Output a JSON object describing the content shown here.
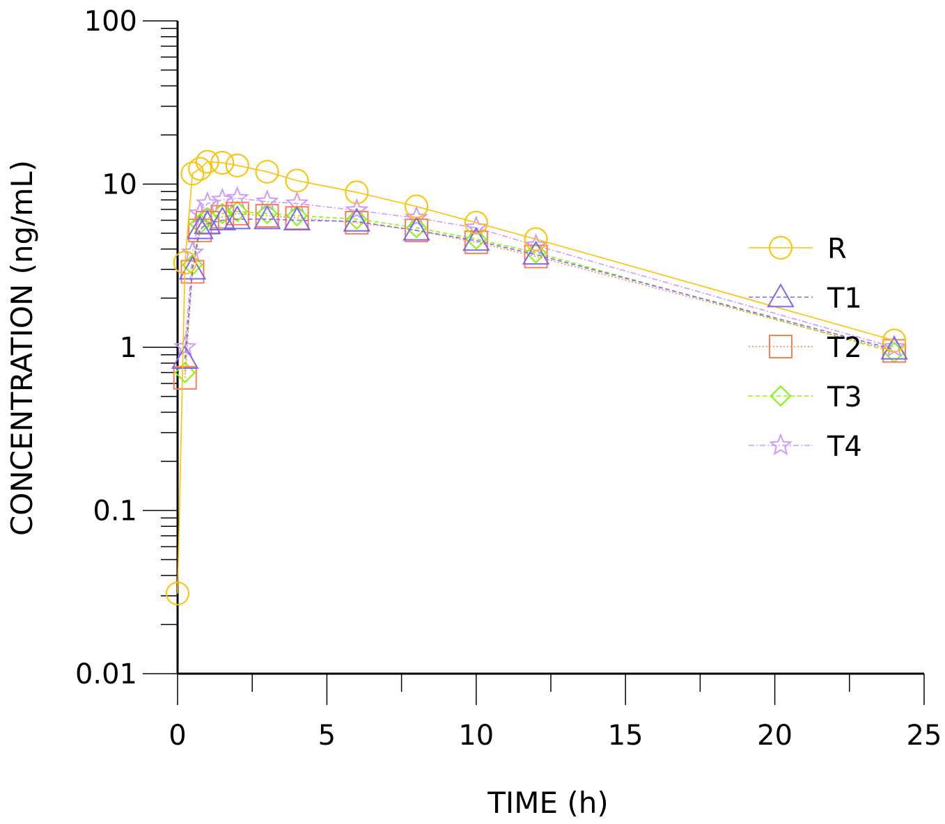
{
  "chart_data": {
    "type": "line",
    "title": "",
    "xlabel": "TIME (h)",
    "ylabel": "CONCENTRATION (ng/mL)",
    "yscale": "log",
    "xlim": [
      0,
      25
    ],
    "ylim": [
      0.01,
      100
    ],
    "xticks": [
      0,
      5,
      10,
      15,
      20,
      25
    ],
    "xtick_labels": [
      "0",
      "5",
      "10",
      "15",
      "20",
      "25"
    ],
    "yticks": [
      0.01,
      0.1,
      1,
      10,
      100
    ],
    "ytick_labels": [
      "0.01",
      "0.1",
      "1",
      "10",
      "100"
    ],
    "legend_position": "right",
    "series": [
      {
        "name": "R",
        "color": "#FFC000",
        "marker": "circle",
        "dash": "solid",
        "x": [
          0,
          0.25,
          0.5,
          0.75,
          1,
          1.5,
          2,
          3,
          4,
          6,
          8,
          10,
          12,
          24
        ],
        "y": [
          0.031,
          3.3,
          11.6,
          12.4,
          13.7,
          13.5,
          13.0,
          11.9,
          10.5,
          8.9,
          7.3,
          5.8,
          4.6,
          1.1
        ]
      },
      {
        "name": "T1",
        "color": "#7B68EE",
        "marker": "triangle",
        "dash": "dashed",
        "x": [
          0.25,
          0.5,
          0.75,
          1,
          1.5,
          2,
          3,
          4,
          6,
          8,
          10,
          12,
          24
        ],
        "y": [
          0.85,
          3.0,
          5.3,
          5.7,
          6.0,
          6.1,
          6.1,
          6.0,
          5.9,
          5.2,
          4.5,
          3.7,
          0.97
        ]
      },
      {
        "name": "T2",
        "color": "#FF7F50",
        "marker": "square",
        "dash": "dotted",
        "x": [
          0.25,
          0.5,
          0.75,
          1,
          1.5,
          2,
          3,
          4,
          6,
          8,
          10,
          12,
          24
        ],
        "y": [
          0.65,
          2.9,
          5.2,
          5.8,
          6.3,
          6.6,
          6.4,
          6.2,
          5.8,
          5.2,
          4.4,
          3.6,
          0.95
        ]
      },
      {
        "name": "T3",
        "color": "#7CFC00",
        "marker": "diamond",
        "dash": "dashed",
        "x": [
          0.25,
          0.5,
          0.75,
          1,
          1.5,
          2,
          3,
          4,
          6,
          8,
          10,
          12,
          24
        ],
        "y": [
          0.7,
          3.2,
          5.7,
          6.2,
          6.6,
          6.8,
          6.6,
          6.4,
          6.1,
          5.4,
          4.6,
          3.8,
          0.93
        ]
      },
      {
        "name": "T4",
        "color": "#CC99FF",
        "marker": "star",
        "dash": "dashdot",
        "x": [
          0.25,
          0.5,
          0.75,
          1,
          1.5,
          2,
          3,
          4,
          6,
          8,
          10,
          12,
          24
        ],
        "y": [
          1.0,
          3.8,
          6.6,
          7.6,
          8.0,
          8.2,
          7.8,
          7.6,
          6.9,
          6.2,
          5.4,
          4.2,
          1.0
        ]
      }
    ]
  }
}
